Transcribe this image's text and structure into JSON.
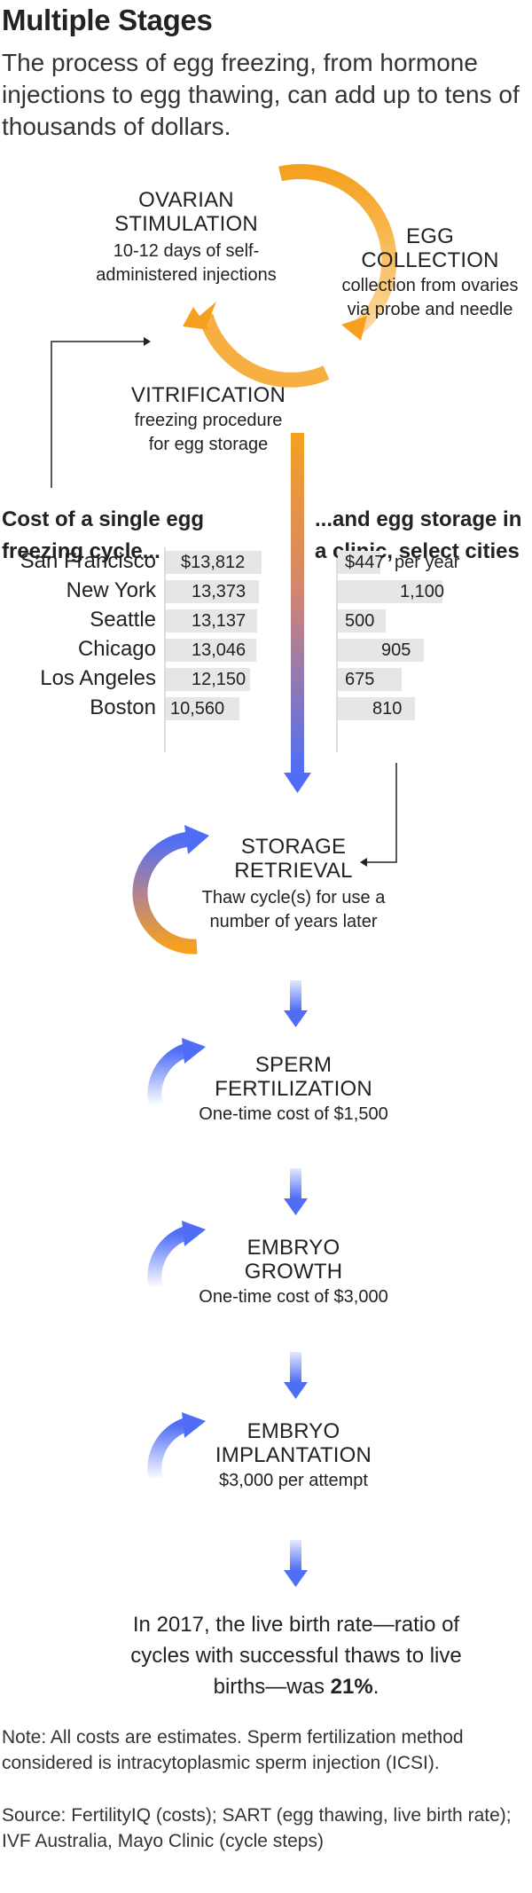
{
  "header": {
    "title": "Multiple Stages",
    "subtitle": "The process of egg freezing, from hormone injections to egg thawing, can add up to tens of thousands of dollars."
  },
  "cycle": {
    "ovarian": {
      "name_1": "OVARIAN",
      "name_2": "STIMULATION",
      "desc_1": "10-12 days of self-",
      "desc_2": "administered injections"
    },
    "collection": {
      "name_1": "EGG",
      "name_2": "COLLECTION",
      "desc_1": "collection from ovaries",
      "desc_2": "via probe and needle"
    },
    "vitrification": {
      "name_1": "VITRIFICATION",
      "desc_1": "freezing procedure",
      "desc_2": "for egg storage"
    }
  },
  "cost_table": {
    "heading_1": "Cost of a single egg",
    "heading_2": "freezing cycle...",
    "rows": [
      {
        "city": "San Francisco",
        "label": "$13,812",
        "value": 13812
      },
      {
        "city": "New York",
        "label": "13,373",
        "value": 13373
      },
      {
        "city": "Seattle",
        "label": "13,137",
        "value": 13137
      },
      {
        "city": "Chicago",
        "label": "13,046",
        "value": 13046
      },
      {
        "city": "Los Angeles",
        "label": "12,150",
        "value": 12150
      },
      {
        "city": "Boston",
        "label": "10,560",
        "value": 10560
      }
    ]
  },
  "storage_table": {
    "heading_1": "...and egg storage in",
    "heading_2": "a clinic, select cities",
    "unit_suffix": "per year",
    "rows": [
      {
        "label": "$447",
        "value": 447
      },
      {
        "label": "1,100",
        "value": 1100
      },
      {
        "label": "500",
        "value": 500
      },
      {
        "label": "905",
        "value": 905
      },
      {
        "label": "675",
        "value": 675
      },
      {
        "label": "810",
        "value": 810
      }
    ]
  },
  "later_stages": {
    "retrieval": {
      "name_1": "STORAGE",
      "name_2": "RETRIEVAL",
      "desc_1": "Thaw cycle(s) for use a",
      "desc_2": "number of years later"
    },
    "fertilization": {
      "name_1": "SPERM",
      "name_2": "FERTILIZATION",
      "desc_1": "One-time cost of $1,500"
    },
    "growth": {
      "name_1": "EMBRYO",
      "name_2": "GROWTH",
      "desc_1": "One-time cost of $3,000"
    },
    "implantation": {
      "name_1": "EMBRYO",
      "name_2": "IMPLANTATION",
      "desc_1": "$3,000 per attempt"
    }
  },
  "conclusion": {
    "line_1": "In 2017, the live birth rate—ratio of",
    "line_2": "cycles with successful thaws to live",
    "line_3": "births—was",
    "rate": "21%",
    "end": "."
  },
  "footer": {
    "note": "Note: All costs are estimates. Sperm fertilization method considered is intracytoplasmic sperm injection (ICSI).",
    "source": "Source: FertilityIQ (costs); SART (egg thawing, live birth rate); IVF Australia, Mayo Clinic (cycle steps)"
  },
  "colors": {
    "orange": "#f5a11f",
    "blue": "#4f6ef5",
    "bar": "#e6e6e6",
    "text": "#222222"
  }
}
